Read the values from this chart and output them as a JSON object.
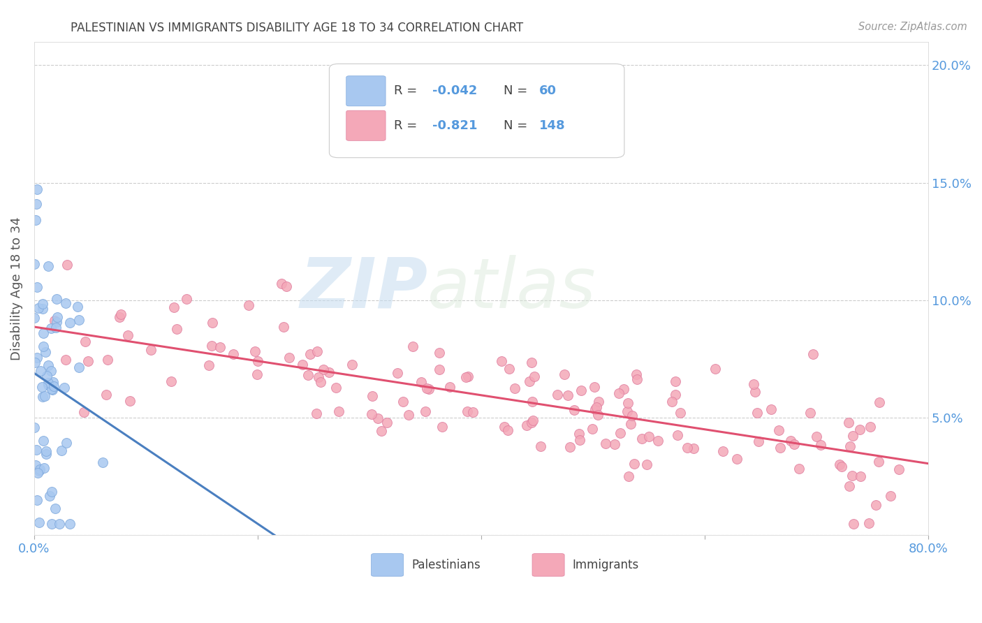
{
  "title": "PALESTINIAN VS IMMIGRANTS DISABILITY AGE 18 TO 34 CORRELATION CHART",
  "source": "Source: ZipAtlas.com",
  "ylabel": "Disability Age 18 to 34",
  "x_min": 0.0,
  "x_max": 0.8,
  "y_min": 0.0,
  "y_max": 0.21,
  "palestinians_color": "#A8C8F0",
  "palestinians_edge": "#80AADD",
  "immigrants_color": "#F4A8B8",
  "immigrants_edge": "#E080A0",
  "trend_palestinians_color": "#4A7FC0",
  "trend_immigrants_color": "#E05070",
  "trend_dashed_color": "#AABBCC",
  "legend_R_palestinians": "-0.042",
  "legend_N_palestinians": "60",
  "legend_R_immigrants": "-0.821",
  "legend_N_immigrants": "148",
  "watermark_zip": "ZIP",
  "watermark_atlas": "atlas",
  "background_color": "#FFFFFF",
  "grid_color": "#CCCCCC",
  "title_color": "#444444",
  "axis_label_color": "#555555",
  "tick_color": "#5599DD",
  "right_tick_color": "#5599DD"
}
